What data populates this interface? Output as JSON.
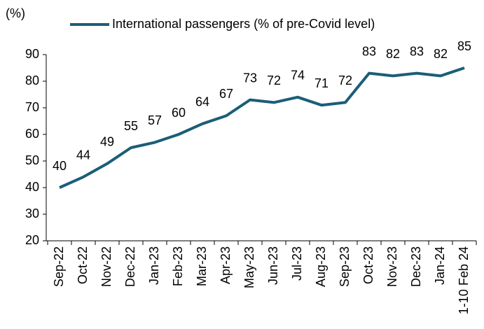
{
  "chart_data": {
    "type": "line",
    "y_axis_label": "(%)",
    "categories": [
      "Sep-22",
      "Oct-22",
      "Nov-22",
      "Dec-22",
      "Jan-23",
      "Feb-23",
      "Mar-23",
      "Apr-23",
      "May-23",
      "Jun-23",
      "Jul-23",
      "Aug-23",
      "Sep-23",
      "Oct-23",
      "Nov-23",
      "Dec-23",
      "Jan-24",
      "1-10 Feb 24"
    ],
    "series": [
      {
        "name": "International passengers (% of pre-Covid level)",
        "color": "#1b5e78",
        "values": [
          40,
          44,
          49,
          55,
          57,
          60,
          64,
          67,
          73,
          72,
          74,
          71,
          72,
          83,
          82,
          83,
          82,
          85
        ]
      }
    ],
    "ylim": [
      20,
      90
    ],
    "yticks": [
      20,
      30,
      40,
      50,
      60,
      70,
      80,
      90
    ],
    "grid": false,
    "legend": "top"
  }
}
